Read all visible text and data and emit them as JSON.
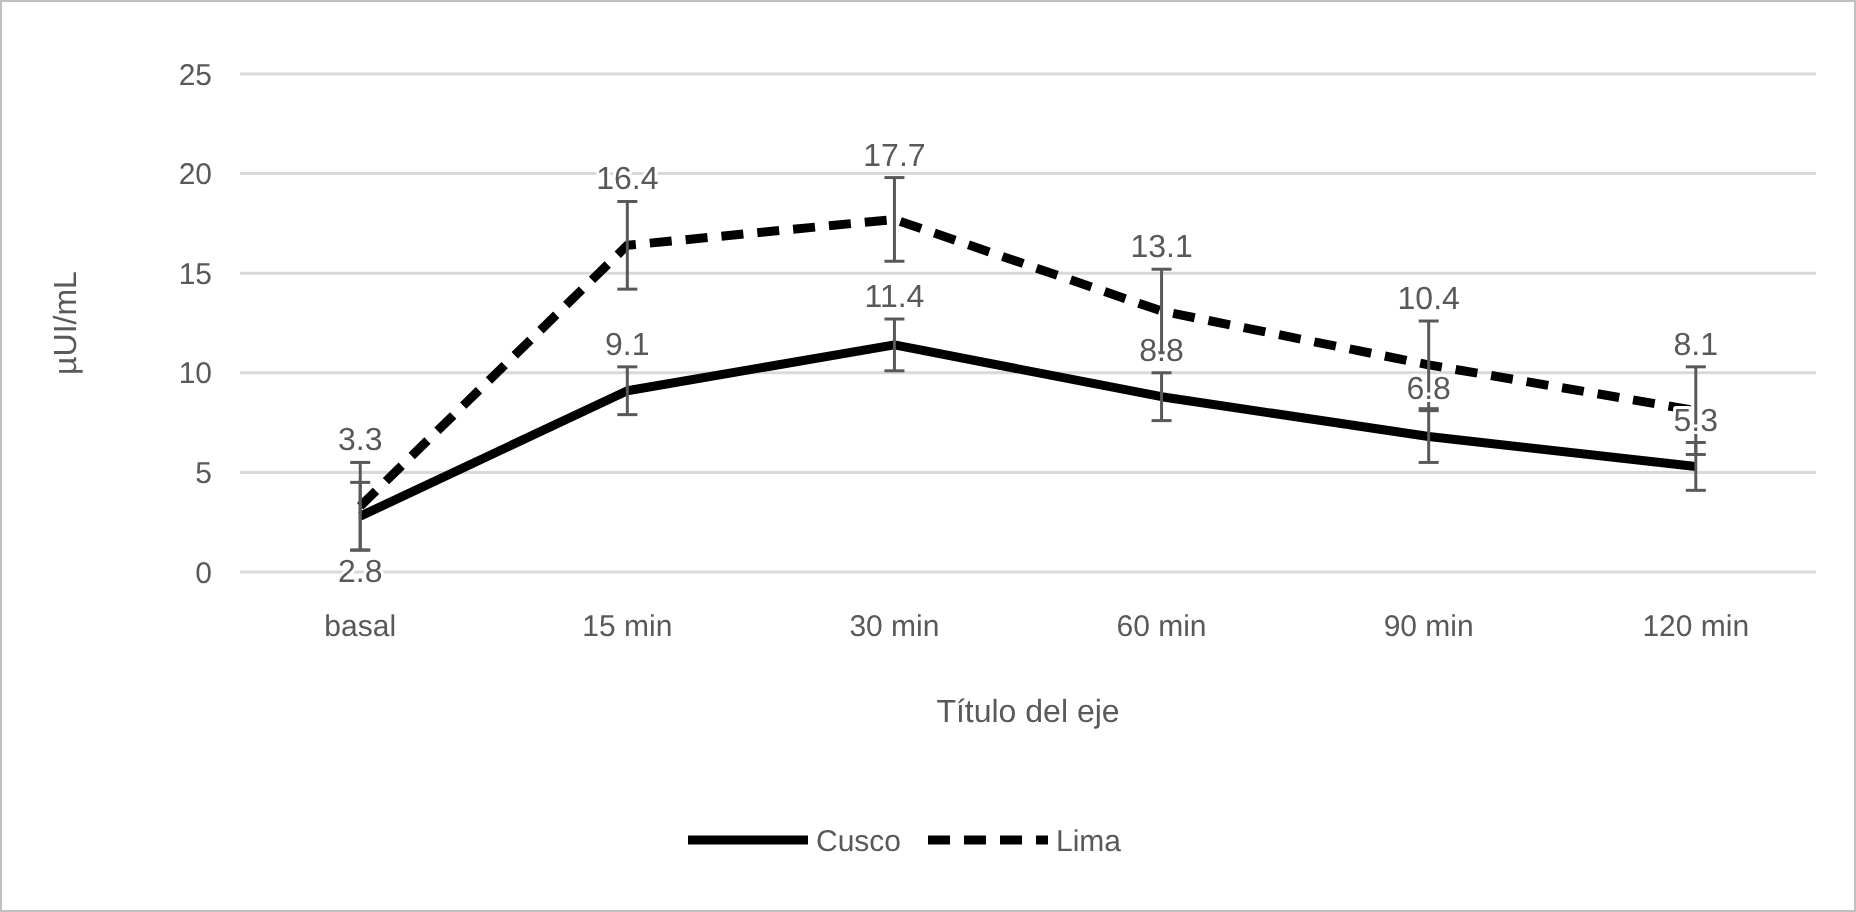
{
  "chart_data": {
    "type": "line",
    "xlabel": "Título del eje",
    "ylabel": "µUI/mL",
    "categories": [
      "basal",
      "15 min",
      "30 min",
      "60 min",
      "90 min",
      "120 min"
    ],
    "series": [
      {
        "name": "Cusco",
        "color": "#000000",
        "line_style": "solid",
        "values": [
          2.8,
          9.1,
          11.4,
          8.8,
          6.8,
          5.3
        ],
        "errors": [
          1.7,
          1.2,
          1.3,
          1.2,
          1.3,
          1.2
        ]
      },
      {
        "name": "Lima",
        "color": "#000000",
        "line_style": "dashed",
        "values": [
          3.3,
          16.4,
          17.7,
          13.1,
          10.4,
          8.1
        ],
        "errors": [
          2.2,
          2.2,
          2.1,
          2.1,
          2.2,
          2.2
        ]
      }
    ],
    "ylim": [
      0,
      25
    ],
    "yticks": [
      0,
      5,
      10,
      15,
      20,
      25
    ],
    "grid": "y",
    "legend": "bottom",
    "data_labels": true,
    "marker": "none"
  }
}
